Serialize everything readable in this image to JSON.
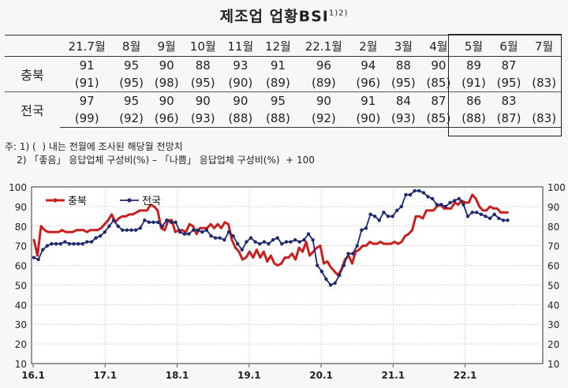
{
  "title": "제조업 업황BSI",
  "title_sup": "1)2)",
  "table": {
    "columns": [
      "21.7월",
      "8월",
      "9월",
      "10월",
      "11월",
      "12월",
      "22.1월",
      "2월",
      "3월",
      "4월",
      "5월",
      "6월",
      "7월"
    ],
    "rows": [
      {
        "label": "충북",
        "actual": [
          "91",
          "95",
          "90",
          "88",
          "93",
          "91",
          "96",
          "94",
          "88",
          "90",
          "89",
          "87",
          ""
        ],
        "forecast": [
          "(91)",
          "(95)",
          "(98)",
          "(95)",
          "(90)",
          "(89)",
          "(89)",
          "(96)",
          "(95)",
          "(85)",
          "(91)",
          "(95)",
          "(83)"
        ]
      },
      {
        "label": "전국",
        "actual": [
          "97",
          "95",
          "90",
          "90",
          "90",
          "95",
          "90",
          "91",
          "84",
          "87",
          "86",
          "83",
          ""
        ],
        "forecast": [
          "(99)",
          "(92)",
          "(96)",
          "(93)",
          "(88)",
          "(88)",
          "(92)",
          "(90)",
          "(93)",
          "(85)",
          "(88)",
          "(87)",
          "(83)"
        ]
      }
    ]
  },
  "notes": [
    "주: 1) (  ) 내는 전월에 조사된 해당월 전망치",
    "    2) 「좋음」 응답업체 구성비(%) – 「나쁨」 응답업체 구성비(%)  + 100"
  ],
  "chart_data": {
    "type": "line",
    "x_ticks": [
      "16.1",
      "17.1",
      "18.1",
      "19.1",
      "20.1",
      "21.1",
      "22.1"
    ],
    "ylim": [
      10,
      100
    ],
    "y_ticks": [
      10,
      20,
      30,
      40,
      50,
      60,
      70,
      80,
      90,
      100
    ],
    "grid": true,
    "legend": "top-left",
    "series": [
      {
        "name": "충북",
        "color": "#c8201e",
        "values": [
          73,
          65,
          80,
          78,
          77,
          77,
          77,
          77,
          78,
          77,
          77,
          77,
          78,
          78,
          78,
          77,
          78,
          78,
          78,
          79,
          81,
          83,
          86,
          82,
          84,
          85,
          85,
          86,
          86,
          87,
          88,
          88,
          88,
          91,
          90,
          88,
          79,
          78,
          83,
          83,
          77,
          78,
          78,
          77,
          81,
          80,
          76,
          79,
          79,
          79,
          81,
          79,
          81,
          79,
          82,
          81,
          73,
          69,
          67,
          63,
          64,
          67,
          64,
          68,
          64,
          67,
          62,
          65,
          61,
          60,
          61,
          64,
          64,
          66,
          63,
          69,
          67,
          72,
          65,
          67,
          69,
          70,
          61,
          62,
          59,
          57,
          55,
          58,
          63,
          65,
          61,
          67,
          68,
          70,
          70,
          72,
          71,
          71,
          72,
          71,
          71,
          71,
          72,
          71,
          72,
          75,
          76,
          78,
          85,
          85,
          84,
          88,
          88,
          88,
          90,
          91,
          89,
          89,
          89,
          92,
          91,
          93,
          92,
          92,
          96,
          94,
          90,
          88,
          88,
          90,
          89,
          89,
          87,
          87,
          87
        ]
      },
      {
        "name": "전국",
        "color": "#1d2a6e",
        "values": [
          64,
          63,
          68,
          70,
          71,
          71,
          71,
          72,
          71,
          71,
          71,
          71,
          72,
          72,
          74,
          75,
          77,
          80,
          83,
          80,
          78,
          78,
          78,
          78,
          79,
          83,
          82,
          82,
          82,
          80,
          83,
          82,
          82,
          77,
          76,
          76,
          78,
          78,
          77,
          78,
          75,
          74,
          74,
          73,
          77,
          75,
          71,
          68,
          72,
          74,
          72,
          71,
          72,
          71,
          73,
          74,
          71,
          72,
          72,
          73,
          72,
          73,
          76,
          73,
          60,
          57,
          53,
          50,
          51,
          55,
          60,
          66,
          66,
          70,
          78,
          79,
          86,
          85,
          83,
          87,
          85,
          85,
          88,
          90,
          96,
          96,
          98,
          98,
          97,
          95,
          94,
          91,
          91,
          90,
          92,
          93,
          94,
          91,
          85,
          87,
          87,
          86,
          85,
          84,
          86,
          84,
          83,
          83
        ]
      }
    ]
  }
}
